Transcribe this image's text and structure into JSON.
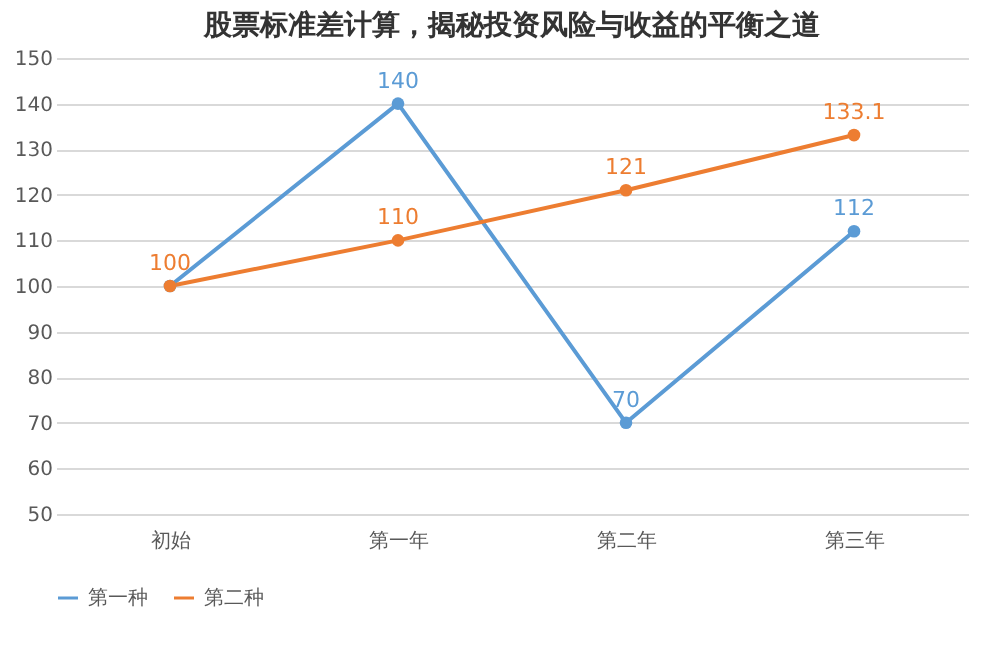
{
  "chart_data": {
    "type": "line",
    "title": "股票标准差计算，揭秘投资风险与收益的平衡之道",
    "categories": [
      "初始",
      "第一年",
      "第二年",
      "第三年"
    ],
    "series": [
      {
        "name": "第一种",
        "color": "#5b9bd5",
        "values": [
          100,
          140,
          70,
          112
        ],
        "value_labels": [
          null,
          "140",
          "70",
          "112"
        ]
      },
      {
        "name": "第二种",
        "color": "#ed7d31",
        "values": [
          100,
          110,
          121,
          133.1
        ],
        "value_labels": [
          "100",
          "110",
          "121",
          "133.1"
        ]
      }
    ],
    "ylim": [
      50,
      150
    ],
    "yticks": [
      50,
      60,
      70,
      80,
      90,
      100,
      110,
      120,
      130,
      140,
      150
    ],
    "grid": "y",
    "legend": "bottom",
    "marker": "circle",
    "line_style": "solid"
  }
}
